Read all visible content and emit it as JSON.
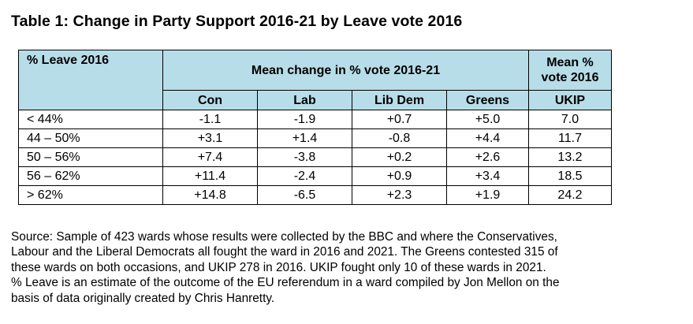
{
  "title": "Table 1: Change in Party Support 2016-21 by Leave vote 2016",
  "table": {
    "corner_label": "% Leave 2016",
    "group_header": "Mean change in % vote 2016-21",
    "ukip_group_header_line1": "Mean %",
    "ukip_group_header_line2": "vote 2016",
    "columns": [
      "Con",
      "Lab",
      "Lib Dem",
      "Greens",
      "UKIP"
    ],
    "rows": [
      {
        "band": "< 44%",
        "con": "-1.1",
        "lab": "-1.9",
        "libdem": "+0.7",
        "greens": "+5.0",
        "ukip": "7.0"
      },
      {
        "band": "44 – 50%",
        "con": "+3.1",
        "lab": "+1.4",
        "libdem": "-0.8",
        "greens": "+4.4",
        "ukip": "11.7"
      },
      {
        "band": "50 – 56%",
        "con": "+7.4",
        "lab": "-3.8",
        "libdem": "+0.2",
        "greens": "+2.6",
        "ukip": "13.2"
      },
      {
        "band": "56 – 62%",
        "con": "+11.4",
        "lab": "-2.4",
        "libdem": "+0.9",
        "greens": "+3.4",
        "ukip": "18.5"
      },
      {
        "band": "> 62%",
        "con": "+14.8",
        "lab": "-6.5",
        "libdem": "+2.3",
        "greens": "+1.9",
        "ukip": "24.2"
      }
    ]
  },
  "source_lines": [
    "Source: Sample of 423 wards whose results were collected by the BBC and where the Conservatives,",
    "Labour and the Liberal Democrats all fought the ward in 2016 and 2021. The Greens contested 315 of",
    "these wards on both occasions, and UKIP 278 in 2016. UKIP fought only 10 of these wards in 2021.",
    "% Leave is an estimate of the outcome of the EU referendum in a ward compiled by Jon Mellon on the",
    "basis of data originally created by Chris Hanretty."
  ],
  "colors": {
    "header_fill": "#b7dde8",
    "border": "#000000"
  }
}
